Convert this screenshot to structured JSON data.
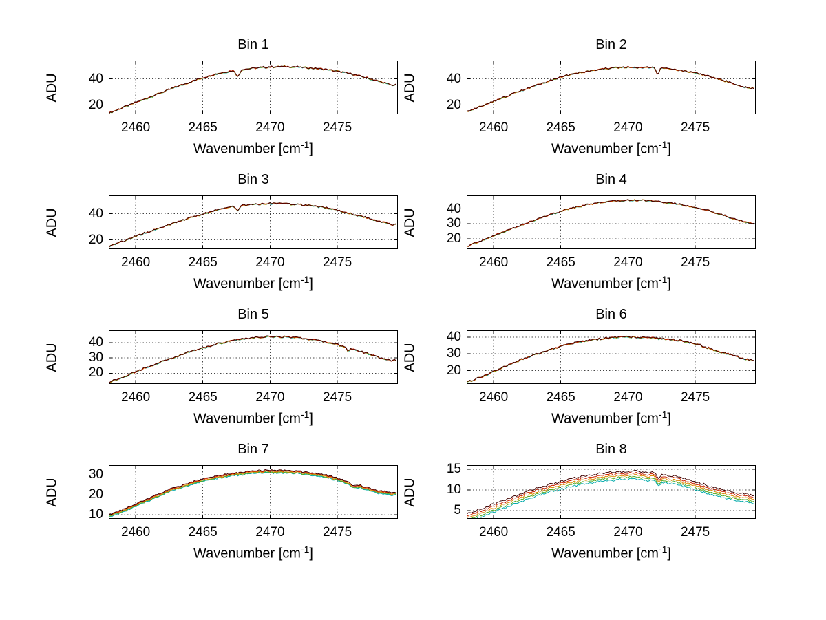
{
  "figure": {
    "background": "#ffffff",
    "ylabel": "ADU",
    "xlabel_prefix": "Wavenumber [cm",
    "xlabel_sup": "-1",
    "xlabel_suffix": "]",
    "grid_color": "#444444",
    "axis_color": "#000000",
    "line_colors_top_to_bottom": [
      "#400000",
      "#cc2200",
      "#dd8800",
      "#55aa22",
      "#00aaaa"
    ]
  },
  "chart_data": [
    {
      "type": "line",
      "title": "Bin 1",
      "xlabel": "Wavenumber [cm^-1]",
      "ylabel": "ADU",
      "xlim": [
        2458,
        2479.5
      ],
      "ylim": [
        13,
        54
      ],
      "xticks": [
        2460,
        2465,
        2470,
        2475
      ],
      "yticks": [
        20,
        40
      ],
      "grid": true,
      "x": [
        2458,
        2459,
        2460,
        2461,
        2462,
        2463,
        2464,
        2465,
        2466,
        2467,
        2468,
        2469,
        2470,
        2471,
        2472,
        2473,
        2474,
        2475,
        2476,
        2477,
        2478,
        2479
      ],
      "envelope": [
        14,
        18,
        22,
        26,
        30,
        34,
        37.5,
        41,
        44,
        46,
        47.5,
        48.5,
        49.2,
        49.5,
        49.2,
        48.5,
        47.5,
        46,
        44,
        41.5,
        38.5,
        35.5
      ],
      "dips": [
        {
          "x": 2467.6,
          "depth": 5,
          "width": 0.18
        }
      ],
      "noise": 0.7,
      "spread": 0.25,
      "colors": [
        "#400000",
        "#cc2200",
        "#dd8800",
        "#55aa22",
        "#00aaaa"
      ]
    },
    {
      "type": "line",
      "title": "Bin 2",
      "xlabel": "Wavenumber [cm^-1]",
      "ylabel": "ADU",
      "xlim": [
        2458,
        2479.5
      ],
      "ylim": [
        13,
        54
      ],
      "xticks": [
        2460,
        2465,
        2470,
        2475
      ],
      "yticks": [
        20,
        40
      ],
      "grid": true,
      "x": [
        2458,
        2459,
        2460,
        2461,
        2462,
        2463,
        2464,
        2465,
        2466,
        2467,
        2468,
        2469,
        2470,
        2471,
        2472,
        2473,
        2474,
        2475,
        2476,
        2477,
        2478,
        2479
      ],
      "envelope": [
        15,
        19,
        23,
        27,
        31,
        34.5,
        38,
        41.5,
        44,
        46,
        47.5,
        48.5,
        49,
        49,
        48.5,
        47.8,
        46.5,
        44.5,
        42,
        39,
        36,
        33
      ],
      "dips": [
        {
          "x": 2472.2,
          "depth": 5,
          "width": 0.15
        }
      ],
      "noise": 0.7,
      "spread": 0.25,
      "colors": [
        "#400000",
        "#cc2200",
        "#dd8800",
        "#55aa22",
        "#00aaaa"
      ]
    },
    {
      "type": "line",
      "title": "Bin 3",
      "xlabel": "Wavenumber [cm^-1]",
      "ylabel": "ADU",
      "xlim": [
        2458,
        2479.5
      ],
      "ylim": [
        13,
        54
      ],
      "xticks": [
        2460,
        2465,
        2470,
        2475
      ],
      "yticks": [
        20,
        40
      ],
      "grid": true,
      "x": [
        2458,
        2459,
        2460,
        2461,
        2462,
        2463,
        2464,
        2465,
        2466,
        2467,
        2468,
        2469,
        2470,
        2471,
        2472,
        2473,
        2474,
        2475,
        2476,
        2477,
        2478,
        2479
      ],
      "envelope": [
        15,
        19,
        23,
        26.5,
        30,
        33.5,
        37,
        40,
        43,
        45,
        46.5,
        47.5,
        48,
        47.8,
        47.2,
        46.2,
        44.8,
        42.8,
        40.2,
        37.5,
        34.5,
        32
      ],
      "dips": [
        {
          "x": 2467.6,
          "depth": 3.5,
          "width": 0.18
        }
      ],
      "noise": 0.7,
      "spread": 0.25,
      "colors": [
        "#400000",
        "#cc2200",
        "#dd8800",
        "#55aa22",
        "#00aaaa"
      ]
    },
    {
      "type": "line",
      "title": "Bin 4",
      "xlabel": "Wavenumber [cm^-1]",
      "ylabel": "ADU",
      "xlim": [
        2458,
        2479.5
      ],
      "ylim": [
        13,
        49
      ],
      "xticks": [
        2460,
        2465,
        2470,
        2475
      ],
      "yticks": [
        20,
        30,
        40
      ],
      "grid": true,
      "x": [
        2458,
        2459,
        2460,
        2461,
        2462,
        2463,
        2464,
        2465,
        2466,
        2467,
        2468,
        2469,
        2470,
        2471,
        2472,
        2473,
        2474,
        2475,
        2476,
        2477,
        2478,
        2479
      ],
      "envelope": [
        15,
        18.5,
        22,
        25.5,
        29,
        32.5,
        35.5,
        38.5,
        41,
        43,
        44.5,
        45.5,
        46,
        45.8,
        45.2,
        44.2,
        42.8,
        41,
        38.8,
        36,
        33,
        30.5
      ],
      "dips": [],
      "noise": 0.6,
      "spread": 0.25,
      "colors": [
        "#400000",
        "#cc2200",
        "#dd8800",
        "#55aa22",
        "#00aaaa"
      ]
    },
    {
      "type": "line",
      "title": "Bin 5",
      "xlabel": "Wavenumber [cm^-1]",
      "ylabel": "ADU",
      "xlim": [
        2458,
        2479.5
      ],
      "ylim": [
        13,
        48
      ],
      "xticks": [
        2460,
        2465,
        2470,
        2475
      ],
      "yticks": [
        20,
        30,
        40
      ],
      "grid": true,
      "x": [
        2458,
        2459,
        2460,
        2461,
        2462,
        2463,
        2464,
        2465,
        2466,
        2467,
        2468,
        2469,
        2470,
        2471,
        2472,
        2473,
        2474,
        2475,
        2476,
        2477,
        2478,
        2479
      ],
      "envelope": [
        14,
        17.5,
        21,
        24.5,
        28,
        31,
        34,
        36.5,
        39,
        41,
        42.5,
        43.5,
        44,
        43.8,
        43.2,
        42.2,
        40.8,
        38.8,
        36.2,
        33.5,
        30.8,
        28.5
      ],
      "dips": [
        {
          "x": 2475.8,
          "depth": 2.5,
          "width": 0.15
        }
      ],
      "noise": 0.6,
      "spread": 0.25,
      "colors": [
        "#400000",
        "#cc2200",
        "#dd8800",
        "#55aa22",
        "#00aaaa"
      ]
    },
    {
      "type": "line",
      "title": "Bin 6",
      "xlabel": "Wavenumber [cm^-1]",
      "ylabel": "ADU",
      "xlim": [
        2458,
        2479.5
      ],
      "ylim": [
        12,
        44
      ],
      "xticks": [
        2460,
        2465,
        2470,
        2475
      ],
      "yticks": [
        20,
        30,
        40
      ],
      "grid": true,
      "x": [
        2458,
        2459,
        2460,
        2461,
        2462,
        2463,
        2464,
        2465,
        2466,
        2467,
        2468,
        2469,
        2470,
        2471,
        2472,
        2473,
        2474,
        2475,
        2476,
        2477,
        2478,
        2479
      ],
      "envelope": [
        13,
        16,
        19.5,
        23,
        26.5,
        29.5,
        32,
        34.5,
        36.5,
        38,
        39,
        40,
        40.2,
        40,
        39.5,
        38.8,
        37.8,
        36,
        33.5,
        31,
        28.5,
        26.5
      ],
      "dips": [],
      "noise": 0.6,
      "spread": 0.25,
      "colors": [
        "#400000",
        "#cc2200",
        "#dd8800",
        "#55aa22",
        "#00aaaa"
      ]
    },
    {
      "type": "line",
      "title": "Bin 7",
      "xlabel": "Wavenumber [cm^-1]",
      "ylabel": "ADU",
      "xlim": [
        2458,
        2479.5
      ],
      "ylim": [
        8,
        35
      ],
      "xticks": [
        2460,
        2465,
        2470,
        2475
      ],
      "yticks": [
        10,
        20,
        30
      ],
      "grid": true,
      "x": [
        2458,
        2459,
        2460,
        2461,
        2462,
        2463,
        2464,
        2465,
        2466,
        2467,
        2468,
        2469,
        2470,
        2471,
        2472,
        2473,
        2474,
        2475,
        2476,
        2477,
        2478,
        2479
      ],
      "envelope": [
        10,
        12.5,
        15.5,
        18.5,
        21.5,
        24,
        26.2,
        28,
        29.5,
        30.7,
        31.6,
        32.2,
        32.5,
        32.4,
        32,
        31.3,
        30.2,
        28.6,
        26.5,
        24.3,
        22.3,
        21.2
      ],
      "dips": [
        {
          "x": 2476.2,
          "depth": 1.2,
          "width": 0.3
        }
      ],
      "noise": 0.45,
      "spread": 1.3,
      "colors": [
        "#400000",
        "#cc2200",
        "#dd8800",
        "#55aa22",
        "#00aaaa"
      ]
    },
    {
      "type": "line",
      "title": "Bin 8",
      "xlabel": "Wavenumber [cm^-1]",
      "ylabel": "ADU",
      "xlim": [
        2458,
        2479.5
      ],
      "ylim": [
        3,
        16
      ],
      "xticks": [
        2460,
        2465,
        2470,
        2475
      ],
      "yticks": [
        5,
        10,
        15
      ],
      "grid": true,
      "x": [
        2458,
        2459,
        2460,
        2461,
        2462,
        2463,
        2464,
        2465,
        2466,
        2467,
        2468,
        2469,
        2470,
        2471,
        2472,
        2473,
        2474,
        2475,
        2476,
        2477,
        2478,
        2479
      ],
      "envelope": [
        4.3,
        5.3,
        6.5,
        7.8,
        9,
        10.2,
        11.2,
        12.1,
        12.9,
        13.5,
        14,
        14.3,
        14.5,
        14.4,
        14.1,
        13.6,
        12.9,
        12,
        11,
        10.1,
        9.3,
        8.8
      ],
      "dips": [
        {
          "x": 2472.3,
          "depth": 1.2,
          "width": 0.2
        }
      ],
      "noise": 0.28,
      "spread": 1.9,
      "colors": [
        "#400000",
        "#cc2200",
        "#dd8800",
        "#55aa22",
        "#00aaaa"
      ]
    }
  ]
}
